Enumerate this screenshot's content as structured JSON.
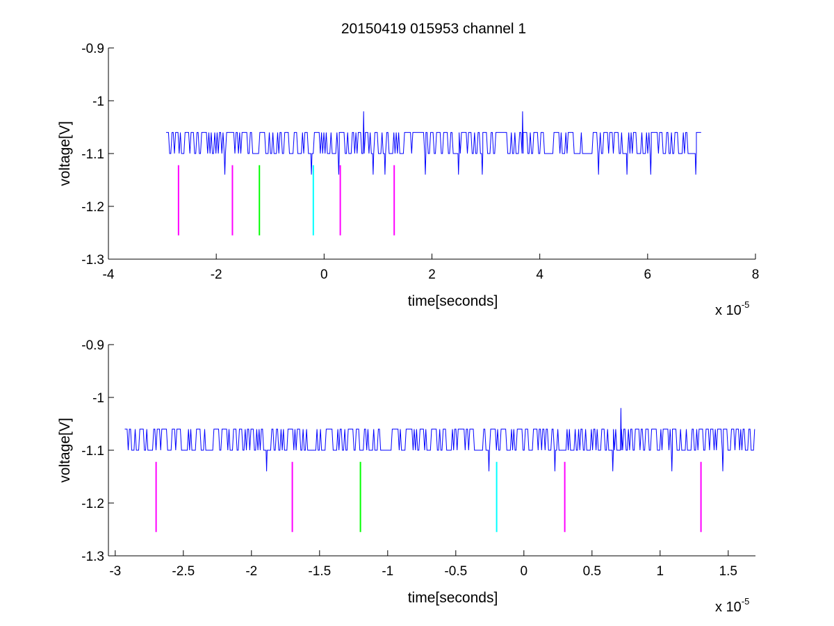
{
  "figure": {
    "title": "20150419 015953 channel 1"
  },
  "chart_data": [
    {
      "type": "line",
      "title": "20150419 015953 channel 1",
      "xlabel": "time[seconds]",
      "ylabel": "voltage[V]",
      "x_exponent_base": "x 10",
      "x_exponent_power": "-5",
      "xlim": [
        -4,
        8
      ],
      "ylim": [
        -1.3,
        -0.9
      ],
      "xticks": [
        -4,
        -2,
        0,
        2,
        4,
        6,
        8
      ],
      "xtick_labels": [
        "-4",
        "-2",
        "0",
        "2",
        "4",
        "6",
        "8"
      ],
      "yticks": [
        -0.9,
        -1.0,
        -1.1,
        -1.2,
        -1.3
      ],
      "ytick_labels": [
        "-0.9",
        "-1",
        "-1.1",
        "-1.2",
        "-1.3"
      ],
      "grid": false,
      "signal": {
        "color": "#0000ff",
        "x_start": -2.93,
        "x_end": 7.0,
        "baseline": -1.1,
        "high_level": -1.06,
        "spikes_up": [
          {
            "x": 0.72,
            "y": -1.02
          },
          {
            "x": 3.67,
            "y": -1.02
          }
        ],
        "dips": [
          {
            "x": -1.85,
            "y": -1.14
          },
          {
            "x": -0.24,
            "y": -1.14
          },
          {
            "x": 0.25,
            "y": -1.14
          },
          {
            "x": 0.9,
            "y": -1.14
          },
          {
            "x": 1.12,
            "y": -1.14
          },
          {
            "x": 1.86,
            "y": -1.14
          },
          {
            "x": 2.48,
            "y": -1.14
          },
          {
            "x": 2.92,
            "y": -1.14
          },
          {
            "x": 5.08,
            "y": -1.14
          },
          {
            "x": 5.6,
            "y": -1.14
          },
          {
            "x": 6.05,
            "y": -1.14
          },
          {
            "x": 6.88,
            "y": -1.14
          }
        ]
      },
      "markers": [
        {
          "x": -2.7,
          "y_top": -1.122,
          "y_bottom": -1.255,
          "color": "#ff00ff"
        },
        {
          "x": -1.7,
          "y_top": -1.122,
          "y_bottom": -1.255,
          "color": "#ff00ff"
        },
        {
          "x": -1.2,
          "y_top": -1.122,
          "y_bottom": -1.255,
          "color": "#00ff00"
        },
        {
          "x": -0.2,
          "y_top": -1.122,
          "y_bottom": -1.255,
          "color": "#00ffff"
        },
        {
          "x": 0.3,
          "y_top": -1.122,
          "y_bottom": -1.255,
          "color": "#ff00ff"
        },
        {
          "x": 1.3,
          "y_top": -1.122,
          "y_bottom": -1.255,
          "color": "#ff00ff"
        }
      ]
    },
    {
      "type": "line",
      "title": "",
      "xlabel": "time[seconds]",
      "ylabel": "voltage[V]",
      "x_exponent_base": "x 10",
      "x_exponent_power": "-5",
      "xlim": [
        -3.05,
        1.7
      ],
      "ylim": [
        -1.3,
        -0.9
      ],
      "xticks": [
        -3,
        -2.5,
        -2,
        -1.5,
        -1,
        -0.5,
        0,
        0.5,
        1,
        1.5
      ],
      "xtick_labels": [
        "-3",
        "-2.5",
        "-2",
        "-1.5",
        "-1",
        "-0.5",
        "0",
        "0.5",
        "1",
        "1.5"
      ],
      "yticks": [
        -0.9,
        -1.0,
        -1.1,
        -1.2,
        -1.3
      ],
      "ytick_labels": [
        "-0.9",
        "-1",
        "-1.1",
        "-1.2",
        "-1.3"
      ],
      "grid": false,
      "signal": {
        "color": "#0000ff",
        "x_start": -2.93,
        "x_end": 1.7,
        "baseline": -1.1,
        "high_level": -1.06,
        "spikes_up": [
          {
            "x": 0.71,
            "y": -1.02
          }
        ],
        "dips": [
          {
            "x": -1.89,
            "y": -1.14
          },
          {
            "x": -0.26,
            "y": -1.14
          },
          {
            "x": 0.22,
            "y": -1.14
          },
          {
            "x": 0.65,
            "y": -1.14
          },
          {
            "x": 1.08,
            "y": -1.14
          },
          {
            "x": 1.46,
            "y": -1.14
          }
        ]
      },
      "markers": [
        {
          "x": -2.7,
          "y_top": -1.122,
          "y_bottom": -1.255,
          "color": "#ff00ff"
        },
        {
          "x": -1.7,
          "y_top": -1.122,
          "y_bottom": -1.255,
          "color": "#ff00ff"
        },
        {
          "x": -1.2,
          "y_top": -1.122,
          "y_bottom": -1.255,
          "color": "#00ff00"
        },
        {
          "x": -0.2,
          "y_top": -1.122,
          "y_bottom": -1.255,
          "color": "#00ffff"
        },
        {
          "x": 0.3,
          "y_top": -1.122,
          "y_bottom": -1.255,
          "color": "#ff00ff"
        },
        {
          "x": 1.3,
          "y_top": -1.122,
          "y_bottom": -1.255,
          "color": "#ff00ff"
        }
      ]
    }
  ]
}
